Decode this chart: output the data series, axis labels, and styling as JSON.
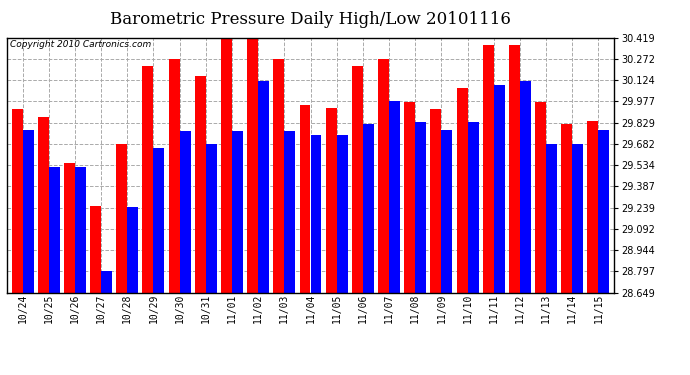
{
  "title": "Barometric Pressure Daily High/Low 20101116",
  "copyright": "Copyright 2010 Cartronics.com",
  "dates": [
    "10/24",
    "10/25",
    "10/26",
    "10/27",
    "10/28",
    "10/29",
    "10/30",
    "10/31",
    "11/01",
    "11/02",
    "11/03",
    "11/04",
    "11/05",
    "11/06",
    "11/07",
    "11/08",
    "11/09",
    "11/10",
    "11/11",
    "11/12",
    "11/13",
    "11/14",
    "11/15"
  ],
  "highs": [
    29.92,
    29.87,
    29.55,
    29.25,
    29.68,
    30.22,
    30.27,
    30.15,
    30.42,
    30.42,
    30.27,
    29.95,
    29.93,
    30.22,
    30.27,
    29.97,
    29.92,
    30.07,
    30.37,
    30.37,
    29.97,
    29.82,
    29.84
  ],
  "lows": [
    29.78,
    29.52,
    29.52,
    28.8,
    29.24,
    29.65,
    29.77,
    29.68,
    29.77,
    30.12,
    29.77,
    29.74,
    29.74,
    29.82,
    29.98,
    29.83,
    29.78,
    29.83,
    30.09,
    30.12,
    29.68,
    29.68,
    29.78
  ],
  "high_color": "#FF0000",
  "low_color": "#0000FF",
  "bg_color": "#FFFFFF",
  "plot_bg_color": "#FFFFFF",
  "grid_color": "#AAAAAA",
  "ymin": 28.649,
  "ymax": 30.419,
  "yticks": [
    28.649,
    28.797,
    28.944,
    29.092,
    29.239,
    29.387,
    29.534,
    29.682,
    29.829,
    29.977,
    30.124,
    30.272,
    30.419
  ],
  "bar_width": 0.42,
  "title_fontsize": 12,
  "tick_fontsize": 7,
  "copyright_fontsize": 6.5
}
